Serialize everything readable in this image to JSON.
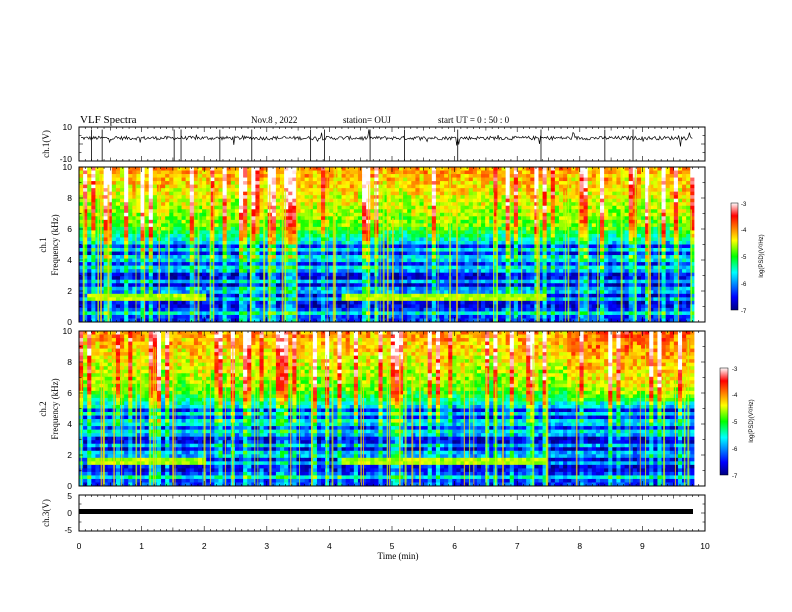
{
  "header": {
    "title": "VLF Spectra",
    "date": "Nov.8 , 2022",
    "station": "station= OUJ",
    "start": "start UT = 0 : 50 : 0"
  },
  "chart_data": [
    {
      "type": "line",
      "name_label": "ch.1(V)",
      "y_ticks": [
        "10",
        "-10"
      ],
      "ylim": [
        -10,
        10
      ],
      "baseline": 3.5
    },
    {
      "type": "heatmap",
      "ylabel": "Frequency (kHz)",
      "channel_label": "ch.1",
      "y_ticks": [
        "0",
        "2",
        "4",
        "6",
        "8",
        "10"
      ],
      "ylim": [
        0,
        10
      ],
      "xlim": [
        0,
        9.83
      ],
      "colorbar": {
        "label": "log(PSD)(V²/Hz)",
        "ticks": [
          "-3",
          "-4",
          "-5",
          "-6",
          "-7"
        ],
        "range": [
          -7,
          -3
        ]
      }
    },
    {
      "type": "heatmap",
      "ylabel": "Frequency (kHz)",
      "channel_label": "ch.2",
      "y_ticks": [
        "0",
        "2",
        "4",
        "6",
        "8",
        "10"
      ],
      "ylim": [
        0,
        10
      ],
      "xlim": [
        0,
        9.83
      ],
      "colorbar": {
        "label": "log(PSD)(V²/Hz)",
        "ticks": [
          "-3",
          "-4",
          "-5",
          "-6",
          "-7"
        ],
        "range": [
          -7,
          -3
        ]
      }
    },
    {
      "type": "line",
      "name_label": "ch.3(V)",
      "y_ticks": [
        "5",
        "0",
        "-5"
      ],
      "ylim": [
        -5,
        5
      ],
      "value": 0
    }
  ],
  "x_axis": {
    "label": "Time (min)",
    "ticks": [
      "0",
      "1",
      "2",
      "3",
      "4",
      "5",
      "6",
      "7",
      "8",
      "9",
      "10"
    ],
    "xlim": [
      0,
      10
    ]
  },
  "colors": {
    "spectrum_dark": "#000080",
    "spectrum_mid": "#00ff00",
    "spectrum_high": "#ff0000"
  }
}
